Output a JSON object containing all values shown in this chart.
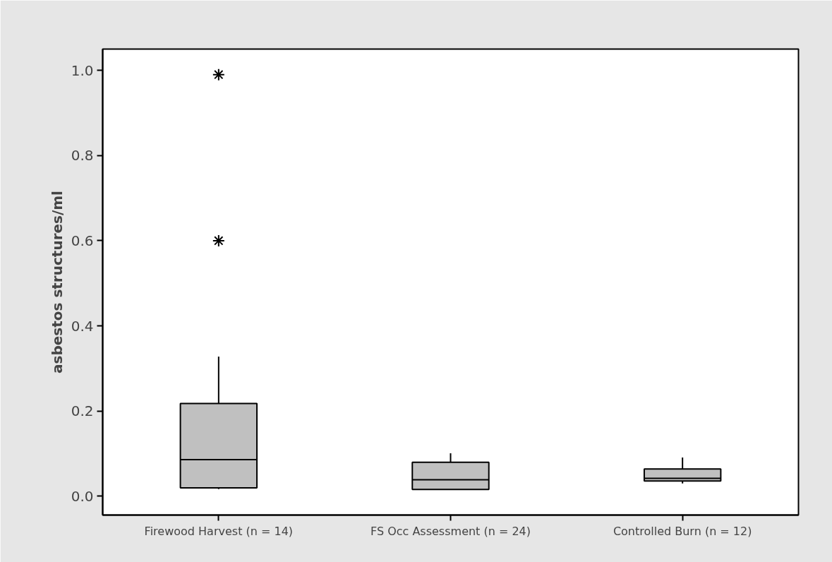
{
  "chart_data": {
    "type": "box",
    "ylabel": "asbestos structures/ml",
    "categories": [
      "Firewood Harvest (n = 14)",
      "FS Occ Assessment (n = 24)",
      "Controlled Burn (n = 12)"
    ],
    "boxes": [
      {
        "low": 0.017,
        "q1": 0.02,
        "median": 0.086,
        "q3": 0.218,
        "high": 0.328,
        "outliers": [
          0.99,
          0.6
        ]
      },
      {
        "low": 0.016,
        "q1": 0.016,
        "median": 0.039,
        "q3": 0.08,
        "high": 0.101
      },
      {
        "low": 0.03,
        "q1": 0.036,
        "median": 0.042,
        "q3": 0.064,
        "high": 0.091
      }
    ],
    "color": "#c0c0c0",
    "marker": "star",
    "ylim": [
      -0.044,
      1.05
    ],
    "yticks": [
      {
        "value": 0,
        "label": "0.0"
      },
      0.2,
      0.4,
      0.6,
      0.8,
      {
        "value": 1,
        "label": "1.0"
      }
    ],
    "grid": false
  }
}
